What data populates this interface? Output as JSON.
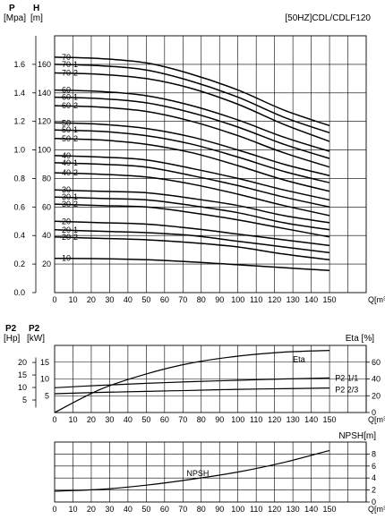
{
  "chart_data": [
    {
      "type": "line",
      "title": "[50HZ]CDL/CDLF120",
      "left_axis_symbol": "P",
      "left_axis_unit": "[Mpa]",
      "right_axis_symbol": "H",
      "right_axis_unit": "[m]",
      "xlabel": "Q[m³/h]",
      "x_ticks": [
        "0",
        "10",
        "20",
        "30",
        "40",
        "50",
        "60",
        "70",
        "80",
        "90",
        "100",
        "110",
        "120",
        "130",
        "140",
        "150"
      ],
      "xlim": [
        0,
        170
      ],
      "ylim_h": [
        0,
        180
      ],
      "y_ticks_h": [
        "20",
        "40",
        "60",
        "80",
        "100",
        "120",
        "140",
        "160"
      ],
      "y_ticks_p": [
        "0.0",
        "0.2",
        "0.4",
        "0.6",
        "0.8",
        "1.0",
        "1.2",
        "1.4",
        "1.6"
      ],
      "grid": true,
      "x": [
        0,
        25,
        50,
        75,
        100,
        125,
        150
      ],
      "series": [
        {
          "name": "-70",
          "values": [
            165,
            164,
            161,
            153,
            142,
            128,
            117
          ]
        },
        {
          "name": "-70-1",
          "values": [
            160,
            159,
            156,
            148,
            137,
            123,
            112
          ]
        },
        {
          "name": "-70-2",
          "values": [
            154,
            153,
            150,
            143,
            132,
            118,
            106
          ]
        },
        {
          "name": "-60",
          "values": [
            142,
            141,
            138,
            131,
            121,
            109,
            99
          ]
        },
        {
          "name": "-60-1",
          "values": [
            137,
            136,
            133,
            126,
            116,
            104,
            94
          ]
        },
        {
          "name": "-60-2",
          "values": [
            131,
            130,
            127,
            120,
            110,
            98,
            88
          ]
        },
        {
          "name": "-50",
          "values": [
            119,
            118,
            115,
            109,
            100,
            90,
            82
          ]
        },
        {
          "name": "-50-1",
          "values": [
            114,
            113,
            110,
            104,
            95,
            85,
            77
          ]
        },
        {
          "name": "-50-2",
          "values": [
            108,
            107,
            104,
            98,
            89,
            79,
            71
          ]
        },
        {
          "name": "-40",
          "values": [
            96,
            95,
            93,
            87,
            80,
            72,
            65
          ]
        },
        {
          "name": "-40-1",
          "values": [
            91,
            90,
            88,
            82,
            75,
            67,
            60
          ]
        },
        {
          "name": "-40-2",
          "values": [
            84,
            83,
            81,
            76,
            69,
            61,
            54
          ]
        },
        {
          "name": "-30",
          "values": [
            72,
            71,
            70,
            66,
            61,
            54,
            49
          ]
        },
        {
          "name": "-30-1",
          "values": [
            67,
            66,
            65,
            61,
            56,
            49,
            44
          ]
        },
        {
          "name": "-30-2",
          "values": [
            62,
            61,
            60,
            56,
            51,
            45,
            39
          ]
        },
        {
          "name": "-20",
          "values": [
            50,
            49,
            48,
            45,
            41,
            37,
            33
          ]
        },
        {
          "name": "-20-1",
          "values": [
            44,
            43,
            42,
            40,
            36,
            32,
            28
          ]
        },
        {
          "name": "-20-2",
          "values": [
            39,
            38,
            37,
            35,
            32,
            27,
            23
          ]
        },
        {
          "name": "-10",
          "values": [
            24,
            23.8,
            23,
            21.5,
            19.5,
            17.5,
            15.5
          ]
        }
      ]
    },
    {
      "type": "line",
      "left_axis_symbols": [
        "P2",
        "P2"
      ],
      "left_axis_units": [
        "[Hp]",
        "[kW]"
      ],
      "right_axis_label": "Eta [%]",
      "xlabel": "Q[m³/h]",
      "x_ticks": [
        "0",
        "10",
        "20",
        "30",
        "40",
        "50",
        "60",
        "70",
        "80",
        "90",
        "100",
        "110",
        "120",
        "130",
        "140",
        "150"
      ],
      "xlim": [
        0,
        170
      ],
      "ylim_kw": [
        0,
        20
      ],
      "y_ticks_kw": [
        "5",
        "10",
        "15"
      ],
      "y_ticks_hp": [
        "5",
        "10",
        "15",
        "20"
      ],
      "y_ticks_eta": [
        "0",
        "20",
        "40",
        "60"
      ],
      "grid": true,
      "x": [
        0,
        25,
        50,
        75,
        100,
        125,
        150
      ],
      "series": [
        {
          "name": "Eta",
          "values": [
            0,
            6.9,
            11.5,
            14.8,
            16.8,
            18.0,
            18.5
          ]
        },
        {
          "name": "P2 1/1",
          "values": [
            7.4,
            8.1,
            8.7,
            9.2,
            9.6,
            10.0,
            10.3
          ]
        },
        {
          "name": "P2 2/3",
          "values": [
            5.6,
            6.0,
            6.3,
            6.6,
            6.9,
            7.1,
            7.3
          ]
        }
      ]
    },
    {
      "type": "line",
      "right_axis_label": "NPSH[m]",
      "xlabel": "Q[m³/h]",
      "x_ticks": [
        "0",
        "10",
        "20",
        "30",
        "40",
        "50",
        "60",
        "70",
        "80",
        "90",
        "100",
        "110",
        "120",
        "130",
        "140",
        "150"
      ],
      "xlim": [
        0,
        170
      ],
      "ylim": [
        0,
        10
      ],
      "y_ticks": [
        "0",
        "2",
        "4",
        "6",
        "8"
      ],
      "grid": true,
      "x": [
        0,
        25,
        50,
        75,
        100,
        125,
        150
      ],
      "series": [
        {
          "name": "NPSH",
          "values": [
            1.8,
            2.1,
            2.8,
            3.8,
            5.0,
            6.6,
            8.6
          ]
        }
      ]
    }
  ]
}
